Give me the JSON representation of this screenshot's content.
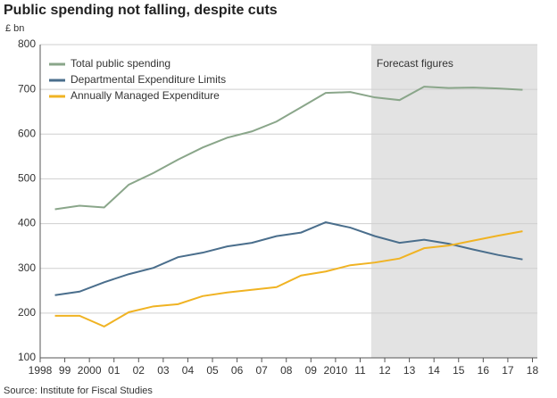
{
  "chart_data": {
    "type": "line",
    "title": "Public spending not falling, despite cuts",
    "y_label": "£ bn",
    "source": "Source: Institute for Fiscal Studies",
    "annotation": "Forecast figures",
    "forecast_range": [
      2011.45,
      2018.2
    ],
    "x": [
      1998.6,
      1999.6,
      2000.6,
      2001.6,
      2002.6,
      2003.6,
      2004.6,
      2005.6,
      2006.6,
      2007.6,
      2008.6,
      2009.6,
      2010.6,
      2011.6,
      2012.6,
      2013.6,
      2014.6,
      2015.6,
      2016.6,
      2017.6
    ],
    "series": [
      {
        "name": "Total public spending",
        "color": "#8aa68a",
        "values": [
          432,
          440,
          436,
          487,
          513,
          543,
          570,
          592,
          606,
          628,
          660,
          692,
          694,
          682,
          676,
          706,
          703,
          704,
          702,
          699
        ]
      },
      {
        "name": "Departmental Expenditure Limits",
        "color": "#4a6e8c",
        "values": [
          240,
          248,
          269,
          287,
          301,
          325,
          335,
          349,
          357,
          372,
          380,
          403,
          391,
          372,
          357,
          364,
          355,
          342,
          330,
          320
        ]
      },
      {
        "name": "Annually Managed Expenditure",
        "color": "#f0b323",
        "values": [
          194,
          194,
          170,
          202,
          215,
          220,
          238,
          246,
          252,
          258,
          284,
          293,
          307,
          313,
          322,
          345,
          351,
          362,
          373,
          383
        ]
      }
    ],
    "xlim": [
      1998,
      2018.2
    ],
    "ylim": [
      100,
      800
    ],
    "xticks": [
      1998,
      {
        "value": 1999,
        "label": "99"
      },
      2000,
      {
        "value": 2001,
        "label": "01"
      },
      {
        "value": 2002,
        "label": "02"
      },
      {
        "value": 2003,
        "label": "03"
      },
      {
        "value": 2004,
        "label": "04"
      },
      {
        "value": 2005,
        "label": "05"
      },
      {
        "value": 2006,
        "label": "06"
      },
      {
        "value": 2007,
        "label": "07"
      },
      {
        "value": 2008,
        "label": "08"
      },
      {
        "value": 2009,
        "label": "09"
      },
      2010,
      {
        "value": 2011,
        "label": "11"
      },
      {
        "value": 2012,
        "label": "12"
      },
      {
        "value": 2013,
        "label": "13"
      },
      {
        "value": 2014,
        "label": "14"
      },
      {
        "value": 2015,
        "label": "15"
      },
      {
        "value": 2016,
        "label": "16"
      },
      {
        "value": 2017,
        "label": "17"
      },
      {
        "value": 2018,
        "label": "18"
      }
    ],
    "yticks": [
      100,
      200,
      300,
      400,
      500,
      600,
      700,
      800
    ],
    "grid": true
  }
}
